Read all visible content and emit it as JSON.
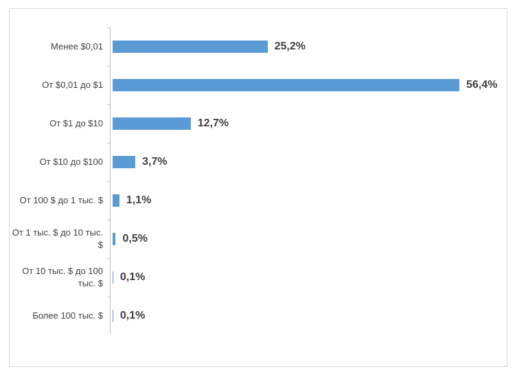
{
  "chart_data": {
    "type": "hbar",
    "categories": [
      "Менее $0,01",
      "От $0,01 до $1",
      "От $1 до $10",
      "От $10 до $100",
      "От 100 $ до 1 тыс. $",
      "От 1 тыс. $ до 10 тыс. $",
      "От 10 тыс. $ до 100 тыс. $",
      "Более 100 тыс. $"
    ],
    "values": [
      25.2,
      56.4,
      12.7,
      3.7,
      1.1,
      0.5,
      0.1,
      0.1
    ],
    "value_labels": [
      "25,2%",
      "56,4%",
      "12,7%",
      "3,7%",
      "1,1%",
      "0,5%",
      "0,1%",
      "0,1%"
    ],
    "color": "#5b9bd5"
  }
}
